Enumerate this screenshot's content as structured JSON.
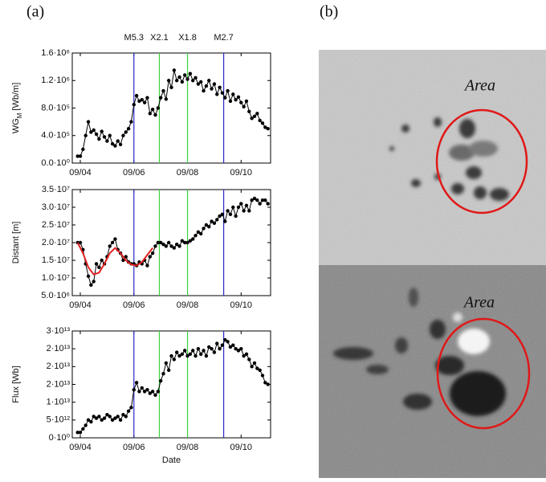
{
  "panels": [
    "(a)",
    "(b)"
  ],
  "images": [
    {
      "label": "Area"
    },
    {
      "label": "Area"
    }
  ],
  "events": [
    {
      "x": 6.0,
      "label": "M5.3",
      "color": "#2a2ac8"
    },
    {
      "x": 6.95,
      "label": "X2.1",
      "color": "#3ad23a"
    },
    {
      "x": 8.0,
      "label": "X1.8",
      "color": "#3ad23a"
    },
    {
      "x": 9.35,
      "label": "M2.7",
      "color": "#2a2ac8"
    }
  ],
  "chart_data": [
    {
      "type": "line",
      "ylabel": [
        "WG",
        "M",
        " [Wb/m]"
      ],
      "xlim": [
        3.7,
        11.1
      ],
      "xticks": [
        {
          "value": 4,
          "label": "09/04"
        },
        {
          "value": 6,
          "label": "09/06"
        },
        {
          "value": 8,
          "label": "09/08"
        },
        {
          "value": 10,
          "label": "09/10"
        }
      ],
      "ylim": [
        0,
        1600000.0
      ],
      "yticks": [
        {
          "value": 0,
          "label": "0.0·10⁰"
        },
        {
          "value": 400000.0,
          "label": "4.0·10⁵"
        },
        {
          "value": 800000.0,
          "label": "8.0·10⁵"
        },
        {
          "value": 1200000.0,
          "label": "1.2·10⁶"
        },
        {
          "value": 1600000.0,
          "label": "1.6·10⁶"
        }
      ],
      "series": [
        {
          "color": "#000000",
          "markers": true,
          "x": [
            3.9,
            4.0,
            4.1,
            4.2,
            4.3,
            4.4,
            4.5,
            4.6,
            4.7,
            4.8,
            4.9,
            5.0,
            5.1,
            5.2,
            5.3,
            5.4,
            5.5,
            5.6,
            5.7,
            5.8,
            5.9,
            6.0,
            6.1,
            6.2,
            6.3,
            6.4,
            6.5,
            6.6,
            6.7,
            6.8,
            6.9,
            7.0,
            7.1,
            7.2,
            7.3,
            7.4,
            7.5,
            7.6,
            7.7,
            7.8,
            7.9,
            8.0,
            8.1,
            8.2,
            8.3,
            8.4,
            8.5,
            8.6,
            8.7,
            8.8,
            8.9,
            9.0,
            9.1,
            9.2,
            9.3,
            9.4,
            9.5,
            9.6,
            9.7,
            9.8,
            9.9,
            10.0,
            10.1,
            10.2,
            10.3,
            10.4,
            10.5,
            10.6,
            10.7,
            10.8,
            10.9,
            11.0
          ],
          "values": [
            100000.0,
            100000.0,
            200000.0,
            400000.0,
            600000.0,
            450000.0,
            480000.0,
            420000.0,
            350000.0,
            460000.0,
            380000.0,
            320000.0,
            400000.0,
            280000.0,
            250000.0,
            320000.0,
            270000.0,
            400000.0,
            450000.0,
            500000.0,
            600000.0,
            850000.0,
            980000.0,
            900000.0,
            920000.0,
            880000.0,
            950000.0,
            720000.0,
            780000.0,
            700000.0,
            800000.0,
            950000.0,
            1050000.0,
            930000.0,
            1200000.0,
            1100000.0,
            1350000.0,
            1200000.0,
            1250000.0,
            1180000.0,
            1280000.0,
            1220000.0,
            1300000.0,
            1200000.0,
            1240000.0,
            1150000.0,
            1180000.0,
            1050000.0,
            1120000.0,
            1200000.0,
            1080000.0,
            1150000.0,
            1000000.0,
            1100000.0,
            1020000.0,
            950000.0,
            1050000.0,
            900000.0,
            1000000.0,
            920000.0,
            960000.0,
            880000.0,
            820000.0,
            900000.0,
            750000.0,
            650000.0,
            680000.0,
            720000.0,
            620000.0,
            580000.0,
            520000.0,
            500000.0
          ]
        }
      ]
    },
    {
      "type": "line",
      "ylabel": "Distant [m]",
      "xlim": [
        3.7,
        11.1
      ],
      "xticks": [
        {
          "value": 4,
          "label": "09/04"
        },
        {
          "value": 6,
          "label": "09/06"
        },
        {
          "value": 8,
          "label": "09/08"
        },
        {
          "value": 10,
          "label": "09/10"
        }
      ],
      "ylim": [
        5000000.0,
        35000000.0
      ],
      "yticks": [
        {
          "value": 5000000.0,
          "label": "5.0·10⁶"
        },
        {
          "value": 10000000.0,
          "label": "1.0·10⁷"
        },
        {
          "value": 15000000.0,
          "label": "1.5·10⁷"
        },
        {
          "value": 20000000.0,
          "label": "2.0·10⁷"
        },
        {
          "value": 25000000.0,
          "label": "2.5·10⁷"
        },
        {
          "value": 30000000.0,
          "label": "3.0·10⁷"
        },
        {
          "value": 35000000.0,
          "label": "3.5·10⁷"
        }
      ],
      "series": [
        {
          "color": "#000000",
          "markers": true,
          "x": [
            3.9,
            4.0,
            4.1,
            4.2,
            4.3,
            4.4,
            4.5,
            4.6,
            4.7,
            4.8,
            4.9,
            5.0,
            5.1,
            5.2,
            5.3,
            5.4,
            5.5,
            5.6,
            5.7,
            5.8,
            5.9,
            6.0,
            6.1,
            6.2,
            6.3,
            6.4,
            6.5,
            6.6,
            6.7,
            6.8,
            6.9,
            7.0,
            7.1,
            7.2,
            7.3,
            7.4,
            7.5,
            7.6,
            7.7,
            7.8,
            7.9,
            8.0,
            8.1,
            8.2,
            8.3,
            8.4,
            8.5,
            8.6,
            8.7,
            8.8,
            8.9,
            9.0,
            9.1,
            9.2,
            9.3,
            9.4,
            9.5,
            9.6,
            9.7,
            9.8,
            9.9,
            10.0,
            10.1,
            10.2,
            10.3,
            10.4,
            10.5,
            10.6,
            10.7,
            10.8,
            10.9,
            11.0
          ],
          "values": [
            20000000.0,
            20000000.0,
            18000000.0,
            14000000.0,
            10500000.0,
            8000000.0,
            9000000.0,
            14000000.0,
            13000000.0,
            15000000.0,
            14000000.0,
            16000000.0,
            19000000.0,
            20000000.0,
            21000000.0,
            18000000.0,
            17000000.0,
            15000000.0,
            16000000.0,
            14500000.0,
            14000000.0,
            14000000.0,
            13500000.0,
            14500000.0,
            14000000.0,
            15000000.0,
            13500000.0,
            16000000.0,
            17000000.0,
            19000000.0,
            20000000.0,
            20000000.0,
            19500000.0,
            19000000.0,
            20000000.0,
            19000000.0,
            18500000.0,
            19500000.0,
            19000000.0,
            20500000.0,
            20000000.0,
            20000000.0,
            20500000.0,
            21000000.0,
            22000000.0,
            23000000.0,
            22500000.0,
            24000000.0,
            25000000.0,
            24500000.0,
            26000000.0,
            25500000.0,
            26500000.0,
            27500000.0,
            28000000.0,
            26000000.0,
            29000000.0,
            28000000.0,
            30000000.0,
            27500000.0,
            30000000.0,
            31000000.0,
            29000000.0,
            30500000.0,
            29000000.0,
            32000000.0,
            32500000.0,
            32000000.0,
            31000000.0,
            32000000.0,
            32000000.0,
            31000000.0
          ]
        },
        {
          "color": "#e02020",
          "markers": false,
          "x": [
            3.9,
            4.1,
            4.3,
            4.5,
            4.7,
            4.9,
            5.1,
            5.3,
            5.5,
            5.7,
            5.9,
            6.1,
            6.3,
            6.5,
            6.7
          ],
          "values": [
            20000000.0,
            17000000.0,
            13000000.0,
            11000000.0,
            11500000.0,
            14000000.0,
            17000000.0,
            18500000.0,
            17000000.0,
            15000000.0,
            13800000.0,
            13500000.0,
            14500000.0,
            16500000.0,
            18500000.0
          ]
        }
      ]
    },
    {
      "type": "line",
      "ylabel": "Flux [Wb]",
      "xlabel": "Date",
      "xlim": [
        3.7,
        11.1
      ],
      "xticks": [
        {
          "value": 4,
          "label": "09/04"
        },
        {
          "value": 6,
          "label": "09/06"
        },
        {
          "value": 8,
          "label": "09/08"
        },
        {
          "value": 10,
          "label": "09/10"
        }
      ],
      "ylim": [
        0,
        30000000000000.0
      ],
      "yticks": [
        {
          "value": 0,
          "label": "0·10⁰"
        },
        {
          "value": 5000000000000.0,
          "label": "5·10¹²"
        },
        {
          "value": 10000000000000.0,
          "label": "1·10¹³"
        },
        {
          "value": 15000000000000.0,
          "label": "2·10¹³"
        },
        {
          "value": 20000000000000.0,
          "label": "2·10¹³"
        },
        {
          "value": 25000000000000.0,
          "label": "2·10¹³"
        },
        {
          "value": 30000000000000.0,
          "label": "3·10¹³"
        }
      ],
      "series": [
        {
          "color": "#000000",
          "markers": true,
          "x": [
            3.9,
            4.0,
            4.1,
            4.2,
            4.3,
            4.4,
            4.5,
            4.6,
            4.7,
            4.8,
            4.9,
            5.0,
            5.1,
            5.2,
            5.3,
            5.4,
            5.5,
            5.6,
            5.7,
            5.8,
            5.9,
            6.0,
            6.1,
            6.2,
            6.3,
            6.4,
            6.5,
            6.6,
            6.7,
            6.8,
            6.9,
            7.0,
            7.1,
            7.2,
            7.3,
            7.4,
            7.5,
            7.6,
            7.7,
            7.8,
            7.9,
            8.0,
            8.1,
            8.2,
            8.3,
            8.4,
            8.5,
            8.6,
            8.7,
            8.8,
            8.9,
            9.0,
            9.1,
            9.2,
            9.3,
            9.4,
            9.5,
            9.6,
            9.7,
            9.8,
            9.9,
            10.0,
            10.1,
            10.2,
            10.3,
            10.4,
            10.5,
            10.6,
            10.7,
            10.8,
            10.9,
            11.0
          ],
          "values": [
            1500000000000.0,
            1500000000000.0,
            2500000000000.0,
            3500000000000.0,
            5000000000000.0,
            4500000000000.0,
            6000000000000.0,
            5500000000000.0,
            6000000000000.0,
            5000000000000.0,
            5500000000000.0,
            6500000000000.0,
            6000000000000.0,
            5000000000000.0,
            5500000000000.0,
            6000000000000.0,
            5000000000000.0,
            6500000000000.0,
            6000000000000.0,
            7500000000000.0,
            8500000000000.0,
            13500000000000.0,
            15500000000000.0,
            13000000000000.0,
            14000000000000.0,
            13000000000000.0,
            13500000000000.0,
            12500000000000.0,
            13000000000000.0,
            12000000000000.0,
            13000000000000.0,
            16000000000000.0,
            18000000000000.0,
            21000000000000.0,
            19000000000000.0,
            23000000000000.0,
            22000000000000.0,
            24000000000000.0,
            23000000000000.0,
            23500000000000.0,
            24500000000000.0,
            23000000000000.0,
            23500000000000.0,
            24500000000000.0,
            23000000000000.0,
            25000000000000.0,
            23500000000000.0,
            24500000000000.0,
            23000000000000.0,
            25500000000000.0,
            25000000000000.0,
            24000000000000.0,
            26500000000000.0,
            25000000000000.0,
            26000000000000.0,
            27500000000000.0,
            27000000000000.0,
            25500000000000.0,
            26000000000000.0,
            25000000000000.0,
            24500000000000.0,
            25000000000000.0,
            23000000000000.0,
            23500000000000.0,
            22000000000000.0,
            20000000000000.0,
            21000000000000.0,
            19500000000000.0,
            19000000000000.0,
            17500000000000.0,
            15500000000000.0,
            15000000000000.0
          ]
        }
      ]
    }
  ]
}
